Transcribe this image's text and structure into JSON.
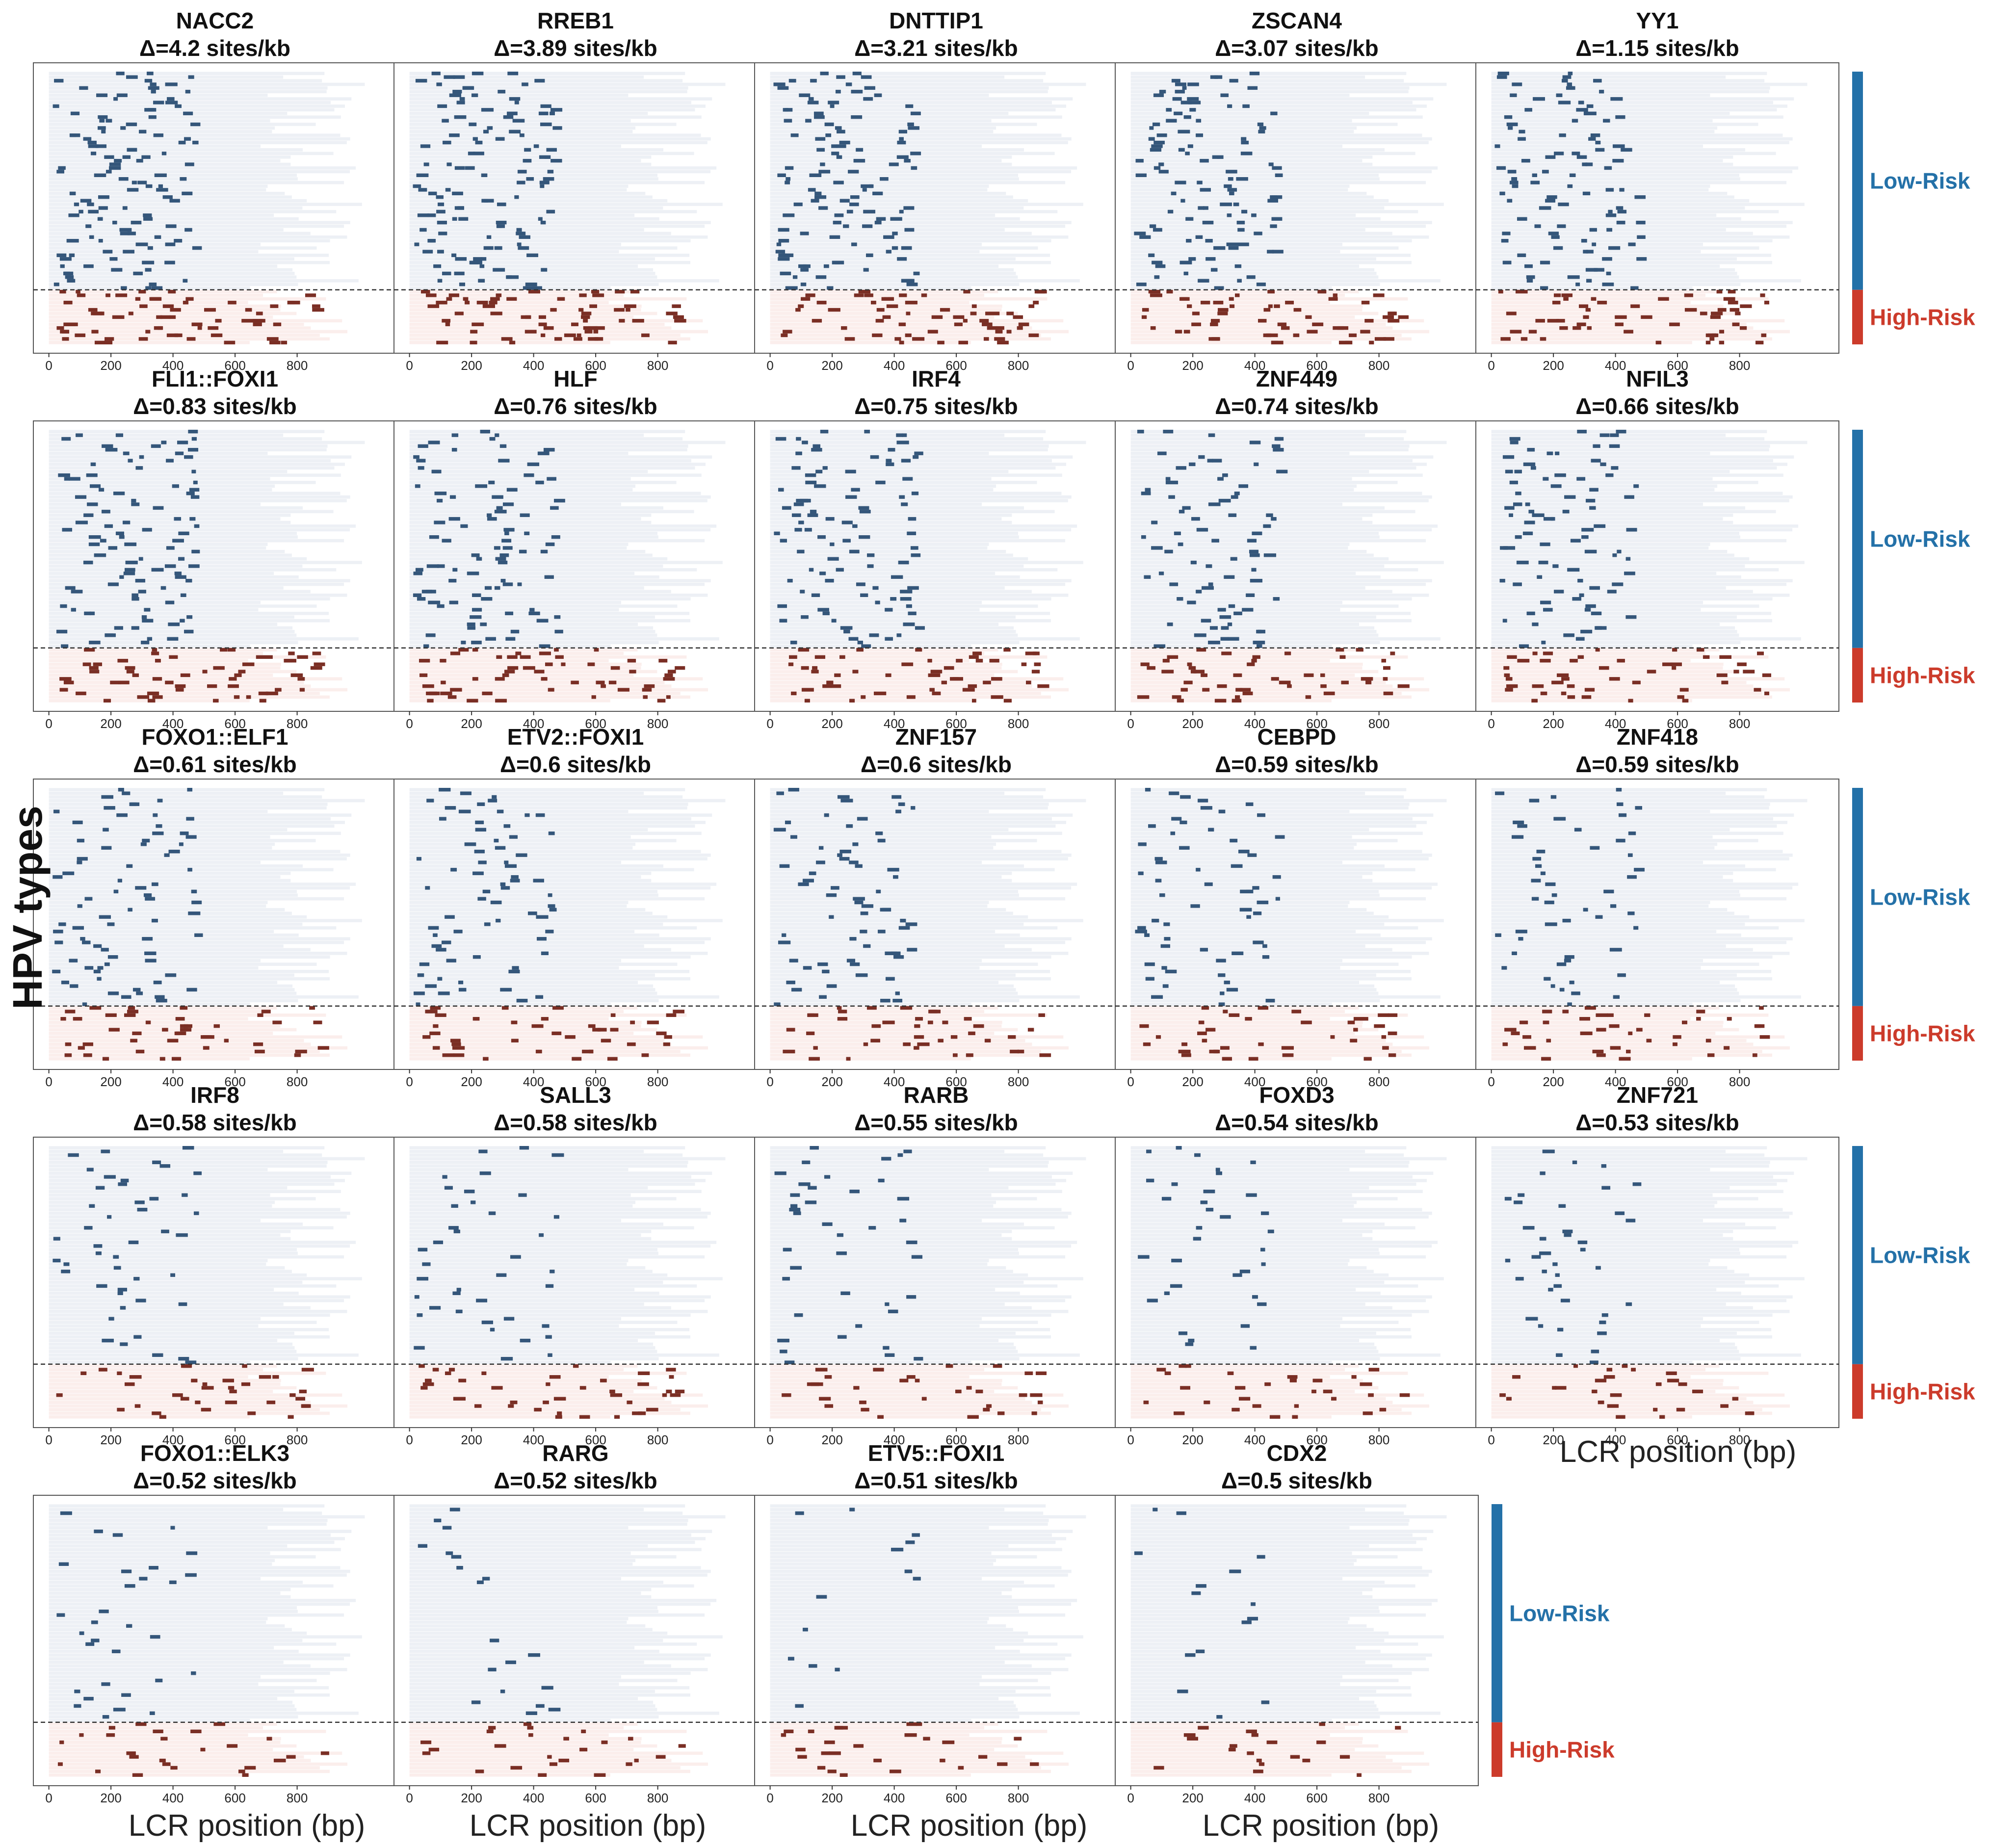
{
  "figure": {
    "ylabel": "HPV types",
    "xlabel": "LCR position (bp)",
    "low_risk_label": "Low-Risk",
    "high_risk_label": "High-Risk",
    "colors": {
      "low_risk": "#2471a8",
      "high_risk": "#cc3b2b",
      "low_site": "#34567a",
      "high_site": "#7a2e24",
      "low_band": "#edf0f5",
      "high_band": "#fbeeec"
    }
  },
  "chart_data": {
    "type": "scatter",
    "xlabel": "LCR position (bp)",
    "ylabel": "HPV types",
    "xticks": [
      0,
      200,
      400,
      600,
      800
    ],
    "xlim": [
      -50,
      1120
    ],
    "row_groups": [
      "Low-Risk",
      "High-Risk"
    ],
    "panels": [
      {
        "title": "NACC2",
        "delta": "Δ=4.2 sites/kb"
      },
      {
        "title": "RREB1",
        "delta": "Δ=3.89 sites/kb"
      },
      {
        "title": "DNTTIP1",
        "delta": "Δ=3.21 sites/kb"
      },
      {
        "title": "ZSCAN4",
        "delta": "Δ=3.07 sites/kb"
      },
      {
        "title": "YY1",
        "delta": "Δ=1.15 sites/kb"
      },
      {
        "title": "FLI1::FOXI1",
        "delta": "Δ=0.83 sites/kb"
      },
      {
        "title": "HLF",
        "delta": "Δ=0.76 sites/kb"
      },
      {
        "title": "IRF4",
        "delta": "Δ=0.75 sites/kb"
      },
      {
        "title": "ZNF449",
        "delta": "Δ=0.74 sites/kb"
      },
      {
        "title": "NFIL3",
        "delta": "Δ=0.66 sites/kb"
      },
      {
        "title": "FOXO1::ELF1",
        "delta": "Δ=0.61 sites/kb"
      },
      {
        "title": "ETV2::FOXI1",
        "delta": "Δ=0.6 sites/kb"
      },
      {
        "title": "ZNF157",
        "delta": "Δ=0.6 sites/kb"
      },
      {
        "title": "CEBPD",
        "delta": "Δ=0.59 sites/kb"
      },
      {
        "title": "ZNF418",
        "delta": "Δ=0.59 sites/kb"
      },
      {
        "title": "IRF8",
        "delta": "Δ=0.58 sites/kb"
      },
      {
        "title": "SALL3",
        "delta": "Δ=0.58 sites/kb"
      },
      {
        "title": "RARB",
        "delta": "Δ=0.55 sites/kb"
      },
      {
        "title": "FOXD3",
        "delta": "Δ=0.54 sites/kb"
      },
      {
        "title": "ZNF721",
        "delta": "Δ=0.53 sites/kb"
      },
      {
        "title": "FOXO1::ELK3",
        "delta": "Δ=0.52 sites/kb"
      },
      {
        "title": "RARG",
        "delta": "Δ=0.52 sites/kb"
      },
      {
        "title": "ETV5::FOXI1",
        "delta": "Δ=0.51 sites/kb"
      },
      {
        "title": "CDX2",
        "delta": "Δ=0.5 sites/kb"
      }
    ]
  }
}
